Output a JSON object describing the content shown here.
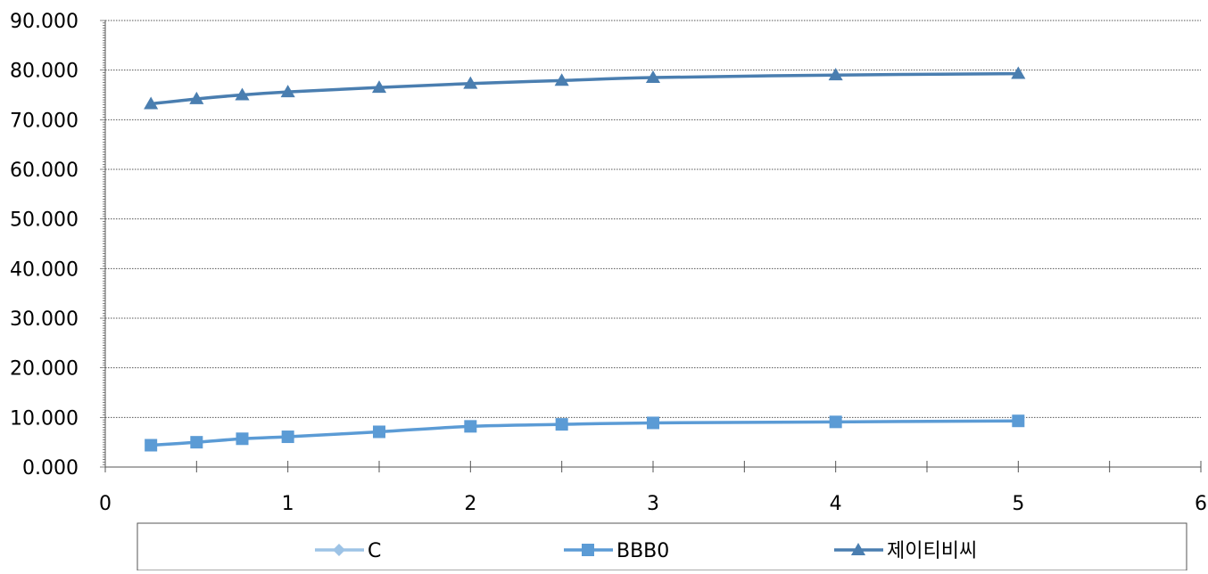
{
  "chart_data": {
    "type": "scatter",
    "mode": "lines+markers",
    "smooth": true,
    "xlim": [
      0,
      6
    ],
    "ylim": [
      0,
      90
    ],
    "x_ticks": [
      0,
      1,
      2,
      3,
      4,
      5,
      6
    ],
    "x_minor_step": 0.5,
    "y_ticks": [
      0,
      10,
      20,
      30,
      40,
      50,
      60,
      70,
      80,
      90
    ],
    "y_tick_labels": [
      "0.000",
      "10.000",
      "20.000",
      "30.000",
      "40.000",
      "50.000",
      "60.000",
      "70.000",
      "80.000",
      "90.000"
    ],
    "x_tick_labels": [
      "0",
      "1",
      "2",
      "3",
      "4",
      "5",
      "6"
    ],
    "grid": {
      "y_major": true,
      "style": "dotted"
    },
    "legend_position": "bottom",
    "x": [
      0.25,
      0.5,
      0.75,
      1,
      1.5,
      2,
      2.5,
      3,
      4,
      5
    ],
    "series": [
      {
        "name": "C",
        "marker": "diamond",
        "color": "#9DC3E6",
        "values": []
      },
      {
        "name": "BBB0",
        "marker": "square",
        "color": "#5B9BD5",
        "values": [
          4.4,
          5.0,
          5.7,
          6.1,
          7.1,
          8.2,
          8.6,
          8.9,
          9.1,
          9.3
        ]
      },
      {
        "name": "제이티비씨",
        "marker": "triangle",
        "color": "#4A7EB0",
        "values": [
          73.2,
          74.2,
          75.0,
          75.6,
          76.5,
          77.3,
          77.9,
          78.5,
          79.0,
          79.3
        ]
      }
    ]
  }
}
